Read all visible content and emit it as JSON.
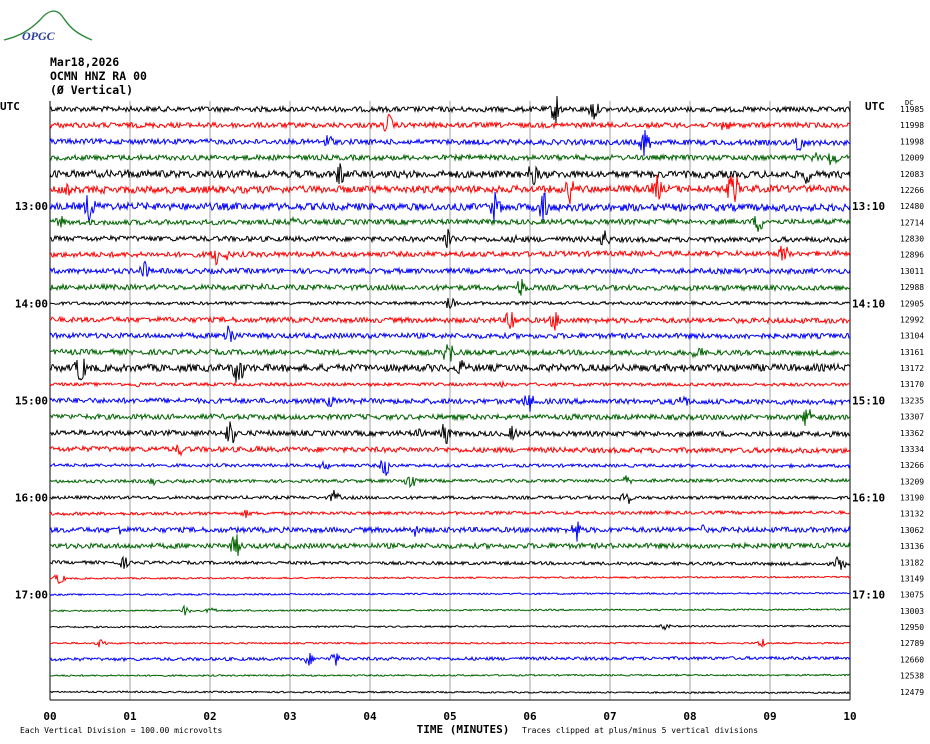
{
  "logo_text": "OPGC",
  "header": {
    "date": "Mar18,2026",
    "station": "OCMN HNZ RA 00",
    "component": "(Ø Vertical)"
  },
  "axis": {
    "left_tz": "UTC",
    "right_tz": "UTC",
    "right_col_header": "DC",
    "xlabel": "TIME (MINUTES)",
    "footer_left": "Each Vertical Division = 100.00 microvolts",
    "footer_right": "Traces clipped at plus/minus 5 vertical divisions"
  },
  "chart_data": {
    "type": "line",
    "title": "",
    "xlabel": "TIME (MINUTES)",
    "xlim": [
      0,
      10
    ],
    "x_ticks": [
      "00",
      "01",
      "02",
      "03",
      "04",
      "05",
      "06",
      "07",
      "08",
      "09",
      "10"
    ],
    "left_hour_labels": [
      "13:00",
      "14:00",
      "15:00",
      "16:00",
      "17:00"
    ],
    "right_hour_labels": [
      "13:10",
      "14:10",
      "15:10",
      "16:10",
      "17:10"
    ],
    "trace_colors": [
      "#000000",
      "#ff0000",
      "#0000ff",
      "#006400"
    ],
    "dc_offsets": [
      11985,
      11998,
      11998,
      12009,
      12083,
      12266,
      12480,
      12714,
      12830,
      12896,
      13011,
      12988,
      12905,
      12992,
      13104,
      13161,
      13172,
      13170,
      13235,
      13307,
      13362,
      13334,
      13266,
      13209,
      13190,
      13132,
      13062,
      13136,
      13182,
      13149,
      13075,
      13003,
      12950,
      12789,
      12660,
      12538,
      12479
    ],
    "trace_activity": [
      2,
      2,
      2,
      2,
      3,
      3,
      3,
      2,
      2,
      2,
      2,
      2,
      1,
      2,
      2,
      2,
      3,
      1,
      2,
      2,
      2,
      2,
      1,
      1,
      1,
      1,
      2,
      2,
      1,
      0,
      0,
      0,
      0,
      0,
      1,
      0,
      0
    ],
    "grid": true
  }
}
